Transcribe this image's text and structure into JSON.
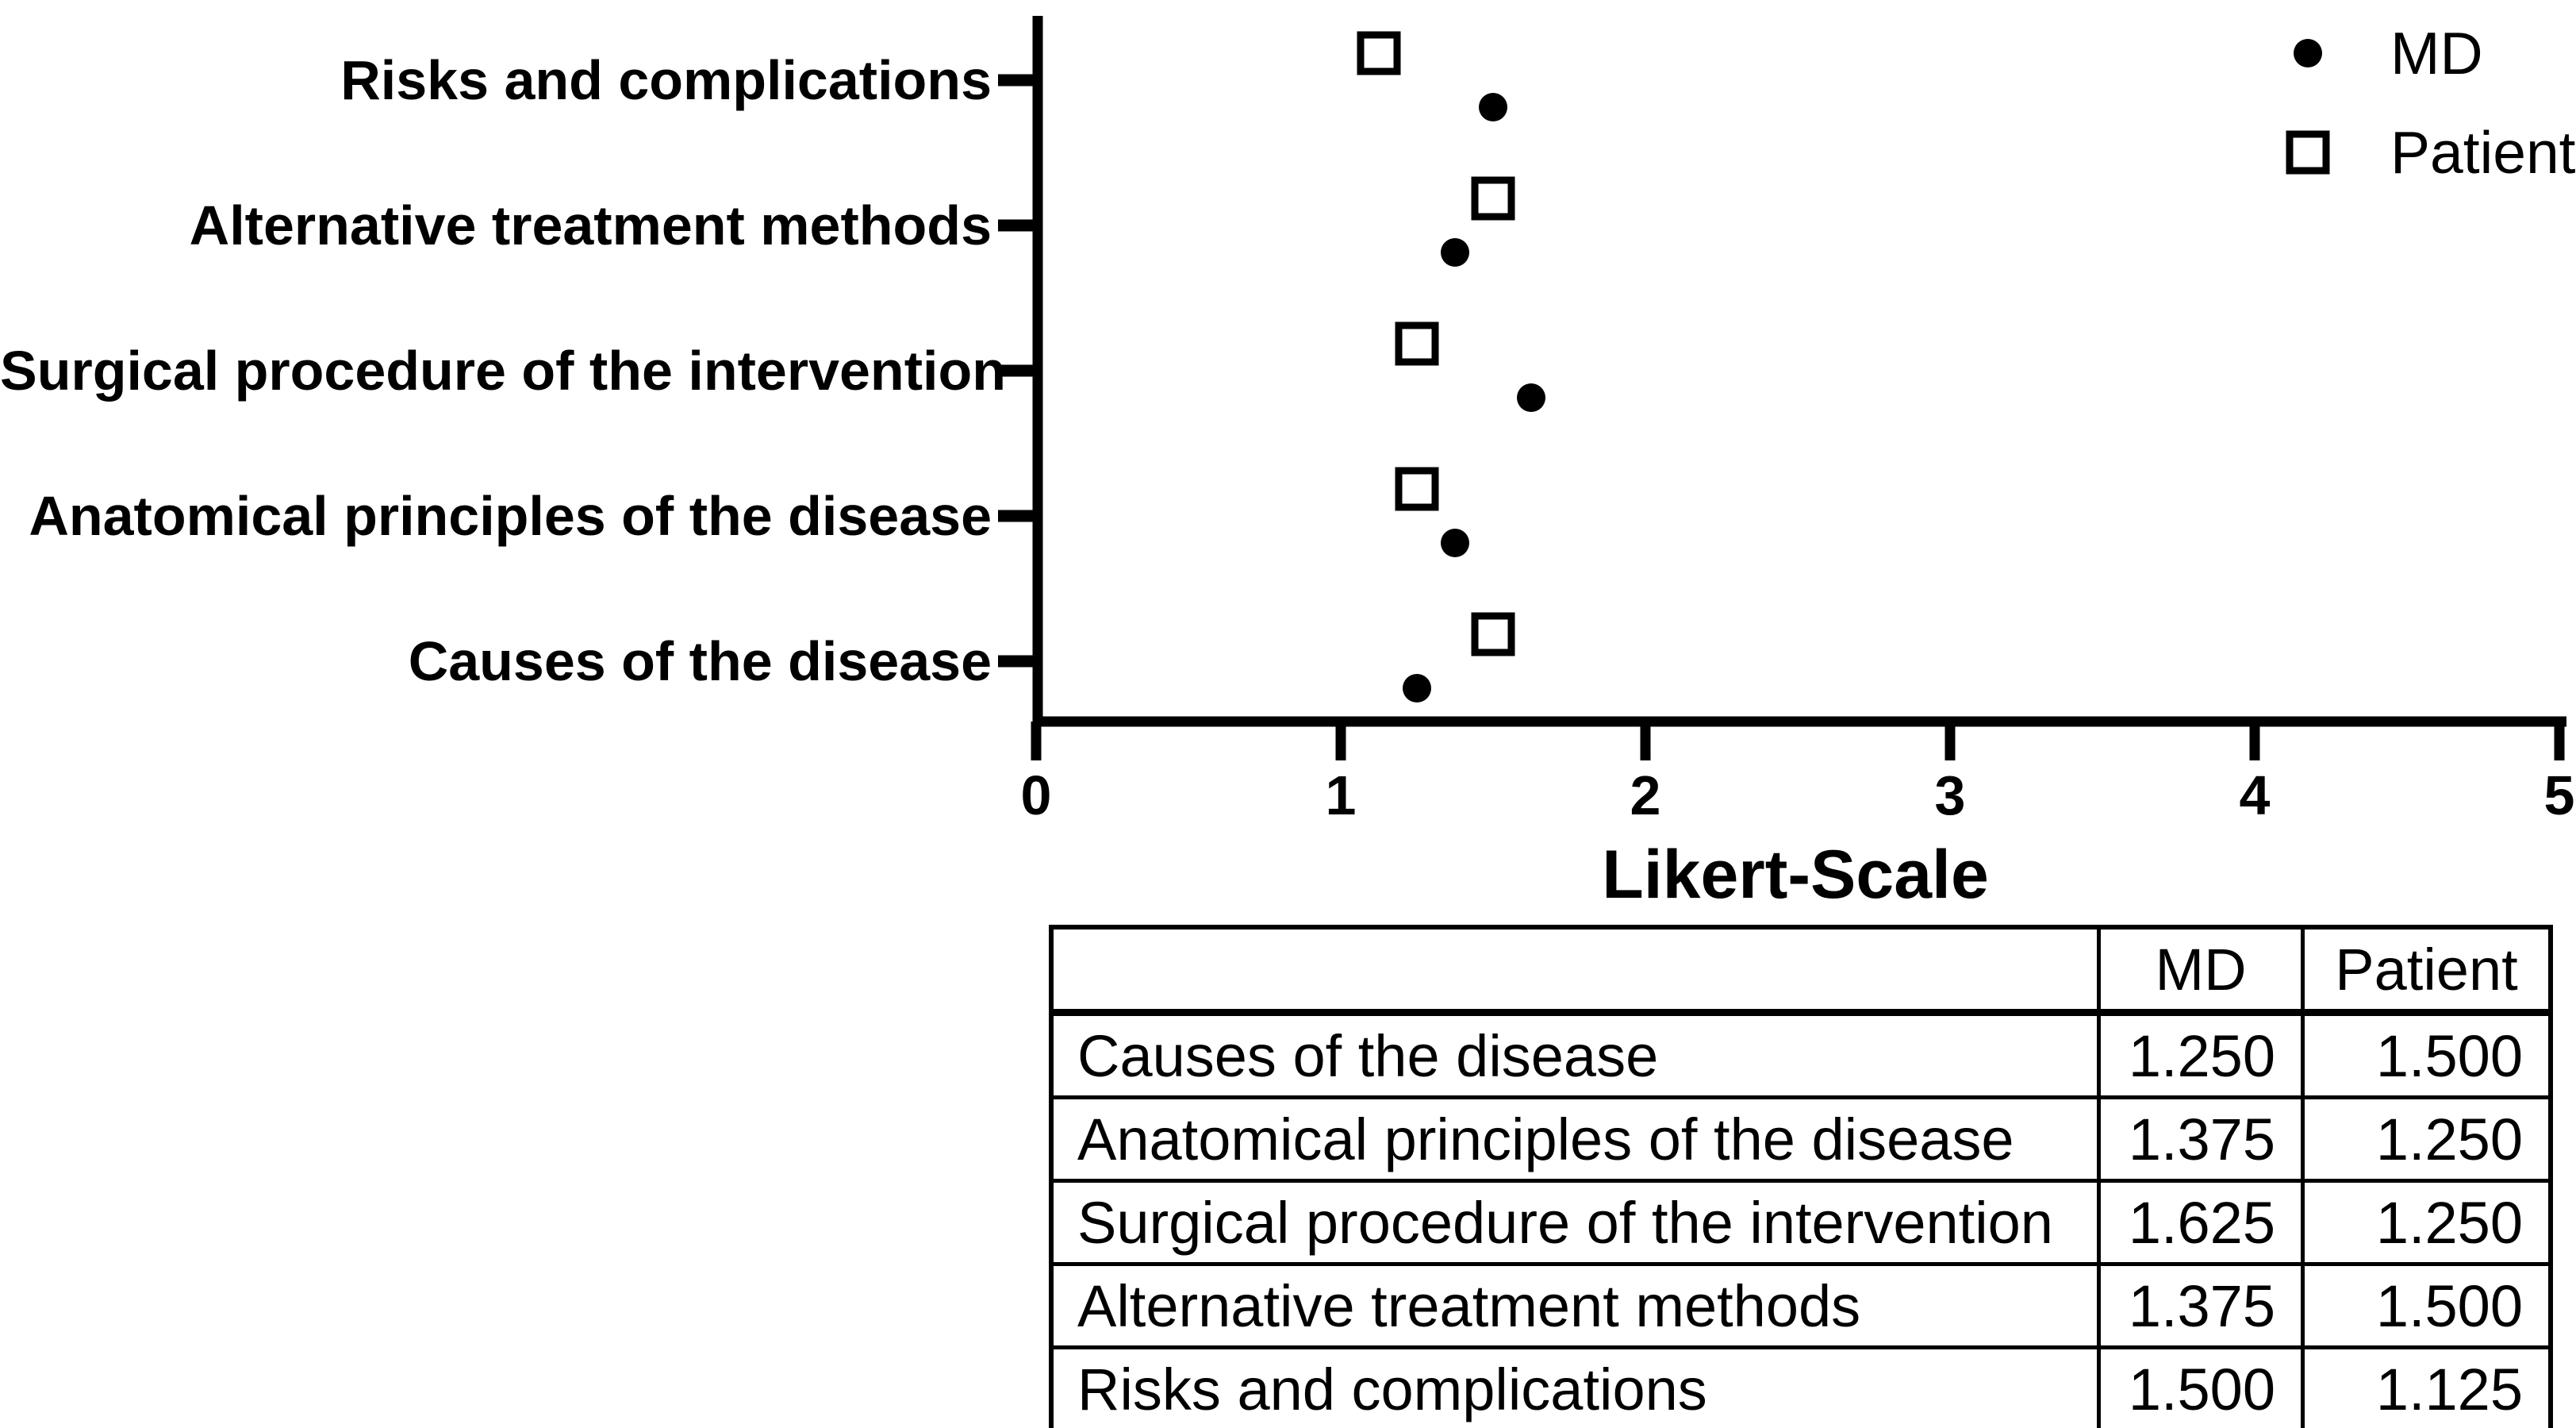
{
  "figure": {
    "background_color": "#ffffff",
    "text_color": "#000000"
  },
  "chart_data": {
    "type": "scatter",
    "orientation": "horizontal_categorical_dot_plot",
    "title": "",
    "xlabel": "Likert-Scale",
    "ylabel": "",
    "xlim": [
      0,
      5
    ],
    "x_ticks": [
      0,
      1,
      2,
      3,
      4,
      5
    ],
    "grid": false,
    "legend_position": "top-right",
    "categories_top_to_bottom": [
      "Risks and complications",
      "Alternative treatment methods",
      "Surgical procedure of the intervention",
      "Anatomical principles of the disease",
      "Causes of the disease"
    ],
    "series": [
      {
        "name": "MD",
        "marker": "filled-circle",
        "position_within_row": "below",
        "values": [
          1.5,
          1.375,
          1.625,
          1.375,
          1.25
        ]
      },
      {
        "name": "Patient",
        "marker": "open-square",
        "position_within_row": "above",
        "values": [
          1.125,
          1.5,
          1.25,
          1.25,
          1.5
        ]
      }
    ],
    "legend": [
      {
        "label": "MD",
        "marker": "filled-circle"
      },
      {
        "label": "Patient",
        "marker": "open-square"
      }
    ]
  },
  "table": {
    "headers": [
      "",
      "MD",
      "Patient"
    ],
    "rows": [
      {
        "label": "Causes of the disease",
        "md": "1.250",
        "patient": "1.500"
      },
      {
        "label": "Anatomical principles of the disease",
        "md": "1.375",
        "patient": "1.250"
      },
      {
        "label": "Surgical procedure of the intervention",
        "md": "1.625",
        "patient": "1.250"
      },
      {
        "label": "Alternative treatment methods",
        "md": "1.375",
        "patient": "1.500"
      },
      {
        "label": "Risks and complications",
        "md": "1.500",
        "patient": "1.125"
      }
    ]
  }
}
